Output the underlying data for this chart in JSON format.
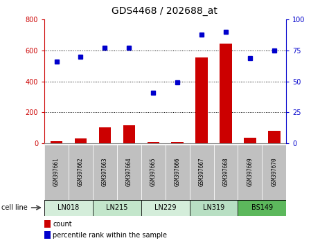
{
  "title": "GDS4468 / 202688_at",
  "samples": [
    "GSM397661",
    "GSM397662",
    "GSM397663",
    "GSM397664",
    "GSM397665",
    "GSM397666",
    "GSM397667",
    "GSM397668",
    "GSM397669",
    "GSM397670"
  ],
  "count_values": [
    15,
    30,
    105,
    115,
    10,
    10,
    555,
    645,
    35,
    80
  ],
  "percentile_values": [
    66,
    70,
    77,
    77,
    41,
    49,
    88,
    90,
    69,
    75
  ],
  "cell_lines": [
    {
      "label": "LN018",
      "start": 0,
      "end": 2,
      "color": "#d4edda"
    },
    {
      "label": "LN215",
      "start": 2,
      "end": 4,
      "color": "#c3e6cb"
    },
    {
      "label": "LN229",
      "start": 4,
      "end": 6,
      "color": "#d4edda"
    },
    {
      "label": "LN319",
      "start": 6,
      "end": 8,
      "color": "#b8dfc3"
    },
    {
      "label": "BS149",
      "start": 8,
      "end": 10,
      "color": "#5cb85c"
    }
  ],
  "left_yaxis_color": "#cc0000",
  "right_yaxis_color": "#0000cc",
  "bar_color": "#cc0000",
  "dot_color": "#0000cc",
  "sample_bg": "#c0c0c0",
  "sample_text_color": "#000000",
  "cell_line_border": "#000000",
  "grid_dotted_color": "#000000",
  "title_fontsize": 10,
  "tick_fontsize": 7,
  "sample_fontsize": 5.5,
  "cell_fontsize": 7,
  "legend_fontsize": 7
}
